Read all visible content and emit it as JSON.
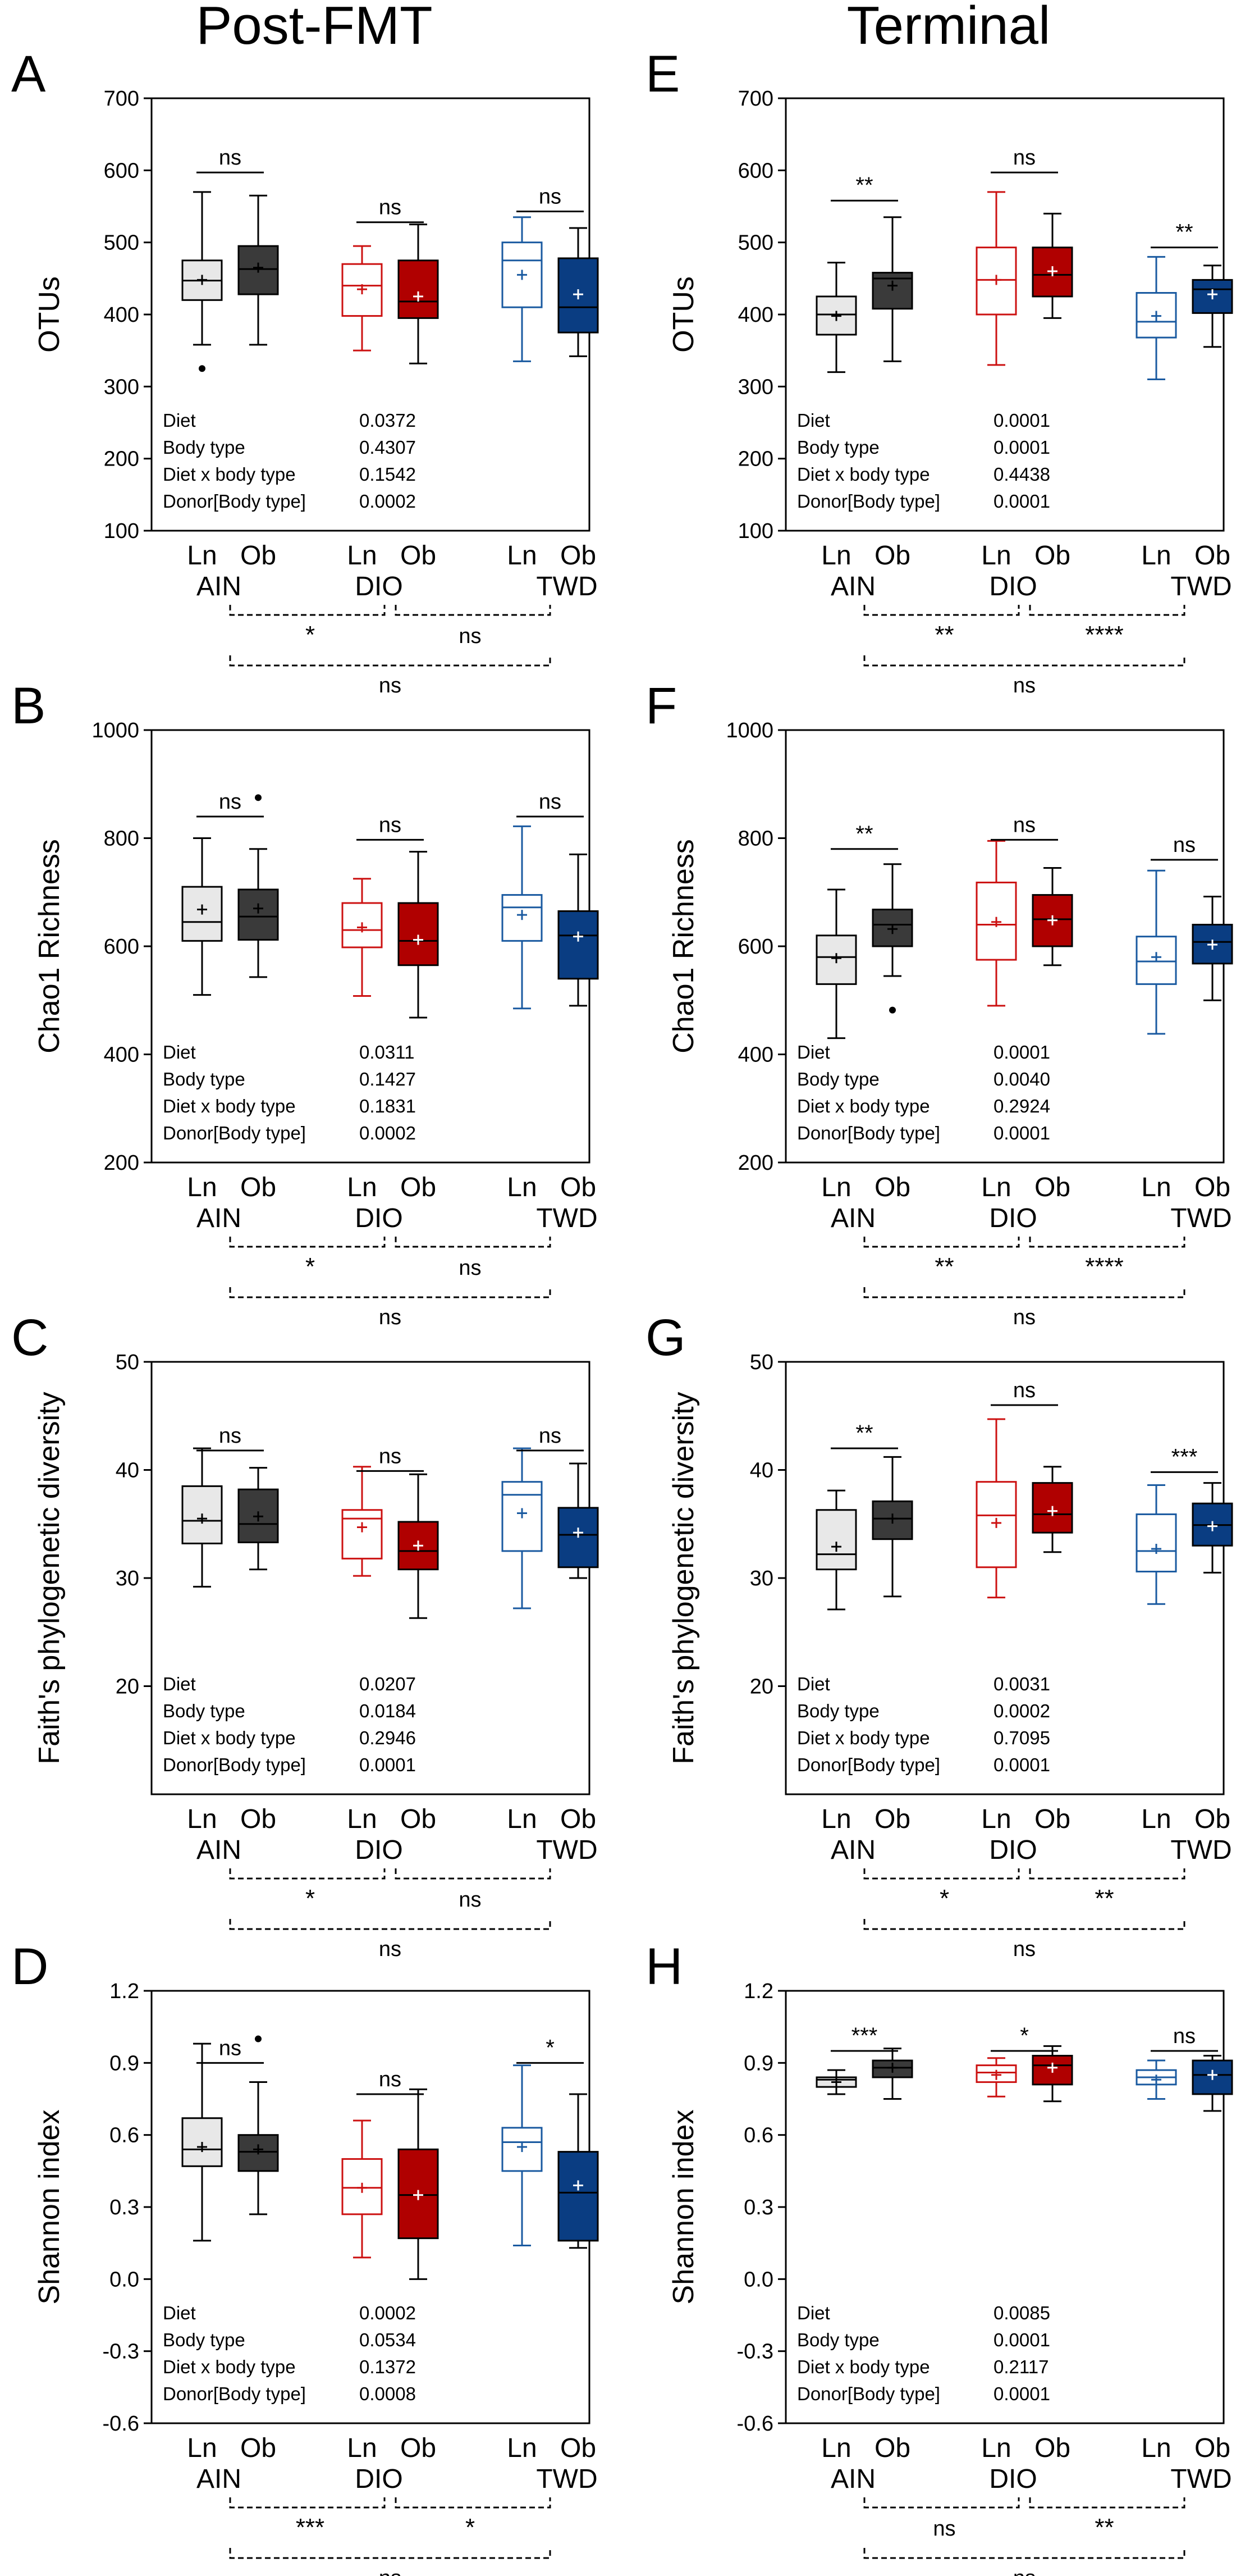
{
  "headers": {
    "left": "Post-FMT",
    "right": "Terminal"
  },
  "colors": {
    "ain_ln_fill": "#e8e8e8",
    "ain_ob_fill": "#3a3a3a",
    "dio_ln_fill": "#ffffff",
    "dio_ob_fill": "#b00000",
    "twd_ln_fill": "#ffffff",
    "twd_ob_fill": "#0a3d82",
    "ain_stroke": "#000000",
    "dio_stroke": "#cc1111",
    "twd_stroke": "#1a5aa0",
    "mean_light": "#000000",
    "mean_dark": "#ffffff"
  },
  "groups": {
    "sub": [
      "Ln",
      "Ob"
    ],
    "diets": [
      "AIN",
      "DIO",
      "TWD"
    ]
  },
  "chart_data": [
    {
      "type": "box",
      "letter": "A",
      "ylabel": "OTUs",
      "ylim": [
        100,
        700
      ],
      "yticks": [
        "100",
        "200",
        "300",
        "400",
        "500",
        "600",
        "700"
      ],
      "boxes": [
        {
          "diet": "AIN",
          "body": "Ln",
          "q1": 420,
          "median": 447,
          "q3": 475,
          "wlo": 358,
          "whi": 570,
          "mean": 448,
          "outliers": [
            325
          ]
        },
        {
          "diet": "AIN",
          "body": "Ob",
          "q1": 428,
          "median": 463,
          "q3": 495,
          "wlo": 358,
          "whi": 565,
          "mean": 465,
          "outliers": []
        },
        {
          "diet": "DIO",
          "body": "Ln",
          "q1": 398,
          "median": 440,
          "q3": 470,
          "wlo": 350,
          "whi": 495,
          "mean": 435,
          "outliers": []
        },
        {
          "diet": "DIO",
          "body": "Ob",
          "q1": 395,
          "median": 418,
          "q3": 475,
          "wlo": 332,
          "whi": 525,
          "mean": 425,
          "outliers": []
        },
        {
          "diet": "TWD",
          "body": "Ln",
          "q1": 410,
          "median": 475,
          "q3": 500,
          "wlo": 335,
          "whi": 535,
          "mean": 455,
          "outliers": []
        },
        {
          "diet": "TWD",
          "body": "Ob",
          "q1": 375,
          "median": 410,
          "q3": 478,
          "wlo": 342,
          "whi": 520,
          "mean": 428,
          "outliers": []
        }
      ],
      "within": [
        {
          "diet": "AIN",
          "label": "ns",
          "y": 597
        },
        {
          "diet": "DIO",
          "label": "ns",
          "y": 528
        },
        {
          "diet": "TWD",
          "label": "ns",
          "y": 543
        }
      ],
      "stats": [
        {
          "name": "Diet",
          "p": "0.0372"
        },
        {
          "name": "Body type",
          "p": "0.4307"
        },
        {
          "name": "Diet x body type",
          "p": "0.1542"
        },
        {
          "name": "Donor[Body type]",
          "p": "0.0002"
        }
      ],
      "between": {
        "ain_dio": "*",
        "dio_twd": "ns",
        "ain_twd": "ns"
      }
    },
    {
      "type": "box",
      "letter": "B",
      "ylabel": "Chao1 Richness",
      "ylim": [
        200,
        1000
      ],
      "yticks": [
        "200",
        "400",
        "600",
        "800",
        "1000"
      ],
      "boxes": [
        {
          "diet": "AIN",
          "body": "Ln",
          "q1": 610,
          "median": 645,
          "q3": 710,
          "wlo": 510,
          "whi": 800,
          "mean": 668,
          "outliers": []
        },
        {
          "diet": "AIN",
          "body": "Ob",
          "q1": 612,
          "median": 655,
          "q3": 705,
          "wlo": 543,
          "whi": 780,
          "mean": 670,
          "outliers": [
            875
          ]
        },
        {
          "diet": "DIO",
          "body": "Ln",
          "q1": 598,
          "median": 630,
          "q3": 680,
          "wlo": 508,
          "whi": 725,
          "mean": 635,
          "outliers": []
        },
        {
          "diet": "DIO",
          "body": "Ob",
          "q1": 565,
          "median": 610,
          "q3": 680,
          "wlo": 468,
          "whi": 775,
          "mean": 612,
          "outliers": []
        },
        {
          "diet": "TWD",
          "body": "Ln",
          "q1": 610,
          "median": 672,
          "q3": 695,
          "wlo": 485,
          "whi": 822,
          "mean": 658,
          "outliers": []
        },
        {
          "diet": "TWD",
          "body": "Ob",
          "q1": 540,
          "median": 620,
          "q3": 665,
          "wlo": 490,
          "whi": 770,
          "mean": 618,
          "outliers": []
        }
      ],
      "within": [
        {
          "diet": "AIN",
          "label": "ns",
          "y": 840
        },
        {
          "diet": "DIO",
          "label": "ns",
          "y": 797
        },
        {
          "diet": "TWD",
          "label": "ns",
          "y": 840
        }
      ],
      "stats": [
        {
          "name": "Diet",
          "p": "0.0311"
        },
        {
          "name": "Body type",
          "p": "0.1427"
        },
        {
          "name": "Diet x body type",
          "p": "0.1831"
        },
        {
          "name": "Donor[Body type]",
          "p": "0.0002"
        }
      ],
      "between": {
        "ain_dio": "*",
        "dio_twd": "ns",
        "ain_twd": "ns"
      }
    },
    {
      "type": "box",
      "letter": "C",
      "ylabel": "Faith's phylogenetic diversity",
      "ylim": [
        10,
        50
      ],
      "yticks": [
        "20",
        "30",
        "40",
        "50"
      ],
      "boxes": [
        {
          "diet": "AIN",
          "body": "Ln",
          "q1": 33.2,
          "median": 35.3,
          "q3": 38.5,
          "wlo": 29.2,
          "whi": 42.0,
          "mean": 35.5,
          "outliers": []
        },
        {
          "diet": "AIN",
          "body": "Ob",
          "q1": 33.3,
          "median": 35.0,
          "q3": 38.2,
          "wlo": 30.8,
          "whi": 40.2,
          "mean": 35.7,
          "outliers": []
        },
        {
          "diet": "DIO",
          "body": "Ln",
          "q1": 31.8,
          "median": 35.5,
          "q3": 36.3,
          "wlo": 30.2,
          "whi": 40.3,
          "mean": 34.7,
          "outliers": []
        },
        {
          "diet": "DIO",
          "body": "Ob",
          "q1": 30.8,
          "median": 32.5,
          "q3": 35.2,
          "wlo": 26.3,
          "whi": 39.6,
          "mean": 33.0,
          "outliers": []
        },
        {
          "diet": "TWD",
          "body": "Ln",
          "q1": 32.5,
          "median": 37.7,
          "q3": 38.9,
          "wlo": 27.2,
          "whi": 42.0,
          "mean": 36.0,
          "outliers": []
        },
        {
          "diet": "TWD",
          "body": "Ob",
          "q1": 31.0,
          "median": 34.0,
          "q3": 36.5,
          "wlo": 30.0,
          "whi": 40.6,
          "mean": 34.2,
          "outliers": []
        }
      ],
      "within": [
        {
          "diet": "AIN",
          "label": "ns",
          "y": 41.8
        },
        {
          "diet": "DIO",
          "label": "ns",
          "y": 39.9
        },
        {
          "diet": "TWD",
          "label": "ns",
          "y": 41.8
        }
      ],
      "stats": [
        {
          "name": "Diet",
          "p": "0.0207"
        },
        {
          "name": "Body type",
          "p": "0.0184"
        },
        {
          "name": "Diet x body type",
          "p": "0.2946"
        },
        {
          "name": "Donor[Body type]",
          "p": "0.0001"
        }
      ],
      "between": {
        "ain_dio": "*",
        "dio_twd": "ns",
        "ain_twd": "ns"
      }
    },
    {
      "type": "box",
      "letter": "D",
      "ylabel": "Shannon index",
      "ylim": [
        -0.6,
        1.2
      ],
      "yticks": [
        "-0.6",
        "-0.3",
        "0.0",
        "0.3",
        "0.6",
        "0.9",
        "1.2"
      ],
      "boxes": [
        {
          "diet": "AIN",
          "body": "Ln",
          "q1": 0.47,
          "median": 0.54,
          "q3": 0.67,
          "wlo": 0.16,
          "whi": 0.98,
          "mean": 0.55,
          "outliers": []
        },
        {
          "diet": "AIN",
          "body": "Ob",
          "q1": 0.45,
          "median": 0.53,
          "q3": 0.6,
          "wlo": 0.27,
          "whi": 0.82,
          "mean": 0.54,
          "outliers": [
            1.0
          ]
        },
        {
          "diet": "DIO",
          "body": "Ln",
          "q1": 0.27,
          "median": 0.38,
          "q3": 0.5,
          "wlo": 0.09,
          "whi": 0.66,
          "mean": 0.38,
          "outliers": []
        },
        {
          "diet": "DIO",
          "body": "Ob",
          "q1": 0.17,
          "median": 0.35,
          "q3": 0.54,
          "wlo": 0.0,
          "whi": 0.79,
          "mean": 0.35,
          "outliers": []
        },
        {
          "diet": "TWD",
          "body": "Ln",
          "q1": 0.45,
          "median": 0.57,
          "q3": 0.63,
          "wlo": 0.14,
          "whi": 0.89,
          "mean": 0.55,
          "outliers": []
        },
        {
          "diet": "TWD",
          "body": "Ob",
          "q1": 0.16,
          "median": 0.36,
          "q3": 0.53,
          "wlo": 0.13,
          "whi": 0.77,
          "mean": 0.39,
          "outliers": []
        }
      ],
      "within": [
        {
          "diet": "AIN",
          "label": "ns",
          "y": 0.9
        },
        {
          "diet": "DIO",
          "label": "ns",
          "y": 0.77
        },
        {
          "diet": "TWD",
          "label": "*",
          "y": 0.9
        }
      ],
      "stats": [
        {
          "name": "Diet",
          "p": "0.0002"
        },
        {
          "name": "Body type",
          "p": "0.0534"
        },
        {
          "name": "Diet x body type",
          "p": "0.1372"
        },
        {
          "name": "Donor[Body type]",
          "p": "0.0008"
        }
      ],
      "between": {
        "ain_dio": "***",
        "dio_twd": "*",
        "ain_twd": "ns"
      }
    },
    {
      "type": "box",
      "letter": "E",
      "ylabel": "OTUs",
      "ylim": [
        100,
        700
      ],
      "yticks": [
        "100",
        "200",
        "300",
        "400",
        "500",
        "600",
        "700"
      ],
      "boxes": [
        {
          "diet": "AIN",
          "body": "Ln",
          "q1": 372,
          "median": 400,
          "q3": 425,
          "wlo": 320,
          "whi": 472,
          "mean": 398,
          "outliers": []
        },
        {
          "diet": "AIN",
          "body": "Ob",
          "q1": 408,
          "median": 450,
          "q3": 458,
          "wlo": 335,
          "whi": 535,
          "mean": 440,
          "outliers": []
        },
        {
          "diet": "DIO",
          "body": "Ln",
          "q1": 400,
          "median": 448,
          "q3": 493,
          "wlo": 330,
          "whi": 570,
          "mean": 448,
          "outliers": []
        },
        {
          "diet": "DIO",
          "body": "Ob",
          "q1": 425,
          "median": 455,
          "q3": 493,
          "wlo": 395,
          "whi": 540,
          "mean": 460,
          "outliers": []
        },
        {
          "diet": "TWD",
          "body": "Ln",
          "q1": 368,
          "median": 390,
          "q3": 430,
          "wlo": 310,
          "whi": 480,
          "mean": 398,
          "outliers": []
        },
        {
          "diet": "TWD",
          "body": "Ob",
          "q1": 402,
          "median": 435,
          "q3": 448,
          "wlo": 355,
          "whi": 468,
          "mean": 428,
          "outliers": []
        }
      ],
      "within": [
        {
          "diet": "AIN",
          "label": "**",
          "y": 558
        },
        {
          "diet": "DIO",
          "label": "ns",
          "y": 597
        },
        {
          "diet": "TWD",
          "label": "**",
          "y": 493
        }
      ],
      "stats": [
        {
          "name": "Diet",
          "p": "0.0001"
        },
        {
          "name": "Body type",
          "p": "0.0001"
        },
        {
          "name": "Diet x body type",
          "p": "0.4438"
        },
        {
          "name": "Donor[Body type]",
          "p": "0.0001"
        }
      ],
      "between": {
        "ain_dio": "**",
        "dio_twd": "****",
        "ain_twd": "ns"
      }
    },
    {
      "type": "box",
      "letter": "F",
      "ylabel": "Chao1 Richness",
      "ylim": [
        200,
        1000
      ],
      "yticks": [
        "200",
        "400",
        "600",
        "800",
        "1000"
      ],
      "boxes": [
        {
          "diet": "AIN",
          "body": "Ln",
          "q1": 530,
          "median": 580,
          "q3": 620,
          "wlo": 430,
          "whi": 705,
          "mean": 578,
          "outliers": []
        },
        {
          "diet": "AIN",
          "body": "Ob",
          "q1": 600,
          "median": 640,
          "q3": 668,
          "wlo": 545,
          "whi": 752,
          "mean": 632,
          "outliers": [
            482
          ]
        },
        {
          "diet": "DIO",
          "body": "Ln",
          "q1": 575,
          "median": 640,
          "q3": 718,
          "wlo": 490,
          "whi": 795,
          "mean": 645,
          "outliers": []
        },
        {
          "diet": "DIO",
          "body": "Ob",
          "q1": 600,
          "median": 650,
          "q3": 695,
          "wlo": 565,
          "whi": 745,
          "mean": 648,
          "outliers": []
        },
        {
          "diet": "TWD",
          "body": "Ln",
          "q1": 530,
          "median": 572,
          "q3": 618,
          "wlo": 438,
          "whi": 740,
          "mean": 580,
          "outliers": []
        },
        {
          "diet": "TWD",
          "body": "Ob",
          "q1": 568,
          "median": 608,
          "q3": 640,
          "wlo": 500,
          "whi": 692,
          "mean": 603,
          "outliers": []
        }
      ],
      "within": [
        {
          "diet": "AIN",
          "label": "**",
          "y": 780
        },
        {
          "diet": "DIO",
          "label": "ns",
          "y": 797
        },
        {
          "diet": "TWD",
          "label": "ns",
          "y": 760
        }
      ],
      "stats": [
        {
          "name": "Diet",
          "p": "0.0001"
        },
        {
          "name": "Body type",
          "p": "0.0040"
        },
        {
          "name": "Diet x body type",
          "p": "0.2924"
        },
        {
          "name": "Donor[Body type]",
          "p": "0.0001"
        }
      ],
      "between": {
        "ain_dio": "**",
        "dio_twd": "****",
        "ain_twd": "ns"
      }
    },
    {
      "type": "box",
      "letter": "G",
      "ylabel": "Faith's phylogenetic diversity",
      "ylim": [
        10,
        50
      ],
      "yticks": [
        "20",
        "30",
        "40",
        "50"
      ],
      "boxes": [
        {
          "diet": "AIN",
          "body": "Ln",
          "q1": 30.8,
          "median": 32.2,
          "q3": 36.3,
          "wlo": 27.1,
          "whi": 38.1,
          "mean": 32.9,
          "outliers": []
        },
        {
          "diet": "AIN",
          "body": "Ob",
          "q1": 33.6,
          "median": 35.5,
          "q3": 37.1,
          "wlo": 28.3,
          "whi": 41.2,
          "mean": 35.5,
          "outliers": []
        },
        {
          "diet": "DIO",
          "body": "Ln",
          "q1": 31.0,
          "median": 35.8,
          "q3": 38.9,
          "wlo": 28.2,
          "whi": 44.7,
          "mean": 35.1,
          "outliers": []
        },
        {
          "diet": "DIO",
          "body": "Ob",
          "q1": 34.2,
          "median": 35.9,
          "q3": 38.8,
          "wlo": 32.4,
          "whi": 40.3,
          "mean": 36.2,
          "outliers": []
        },
        {
          "diet": "TWD",
          "body": "Ln",
          "q1": 30.6,
          "median": 32.5,
          "q3": 35.9,
          "wlo": 27.6,
          "whi": 38.6,
          "mean": 32.7,
          "outliers": []
        },
        {
          "diet": "TWD",
          "body": "Ob",
          "q1": 33.0,
          "median": 34.9,
          "q3": 36.9,
          "wlo": 30.5,
          "whi": 38.8,
          "mean": 34.8,
          "outliers": []
        }
      ],
      "within": [
        {
          "diet": "AIN",
          "label": "**",
          "y": 42.0
        },
        {
          "diet": "DIO",
          "label": "ns",
          "y": 46.0
        },
        {
          "diet": "TWD",
          "label": "***",
          "y": 39.8
        }
      ],
      "stats": [
        {
          "name": "Diet",
          "p": "0.0031"
        },
        {
          "name": "Body type",
          "p": "0.0002"
        },
        {
          "name": "Diet x body type",
          "p": "0.7095"
        },
        {
          "name": "Donor[Body type]",
          "p": "0.0001"
        }
      ],
      "between": {
        "ain_dio": "*",
        "dio_twd": "**",
        "ain_twd": "ns"
      }
    },
    {
      "type": "box",
      "letter": "H",
      "ylabel": "Shannon index",
      "ylim": [
        -0.6,
        1.2
      ],
      "yticks": [
        "-0.6",
        "-0.3",
        "0.0",
        "0.3",
        "0.6",
        "0.9",
        "1.2"
      ],
      "boxes": [
        {
          "diet": "AIN",
          "body": "Ln",
          "q1": 0.8,
          "median": 0.83,
          "q3": 0.84,
          "wlo": 0.77,
          "whi": 0.87,
          "mean": 0.82,
          "outliers": []
        },
        {
          "diet": "AIN",
          "body": "Ob",
          "q1": 0.84,
          "median": 0.88,
          "q3": 0.91,
          "wlo": 0.75,
          "whi": 0.96,
          "mean": 0.88,
          "outliers": []
        },
        {
          "diet": "DIO",
          "body": "Ln",
          "q1": 0.82,
          "median": 0.86,
          "q3": 0.89,
          "wlo": 0.76,
          "whi": 0.92,
          "mean": 0.85,
          "outliers": []
        },
        {
          "diet": "DIO",
          "body": "Ob",
          "q1": 0.81,
          "median": 0.89,
          "q3": 0.93,
          "wlo": 0.74,
          "whi": 0.97,
          "mean": 0.88,
          "outliers": []
        },
        {
          "diet": "TWD",
          "body": "Ln",
          "q1": 0.81,
          "median": 0.84,
          "q3": 0.87,
          "wlo": 0.75,
          "whi": 0.91,
          "mean": 0.83,
          "outliers": []
        },
        {
          "diet": "TWD",
          "body": "Ob",
          "q1": 0.77,
          "median": 0.85,
          "q3": 0.91,
          "wlo": 0.7,
          "whi": 0.93,
          "mean": 0.85,
          "outliers": []
        }
      ],
      "within": [
        {
          "diet": "AIN",
          "label": "***",
          "y": 0.95
        },
        {
          "diet": "DIO",
          "label": "*",
          "y": 0.95
        },
        {
          "diet": "TWD",
          "label": "ns",
          "y": 0.95
        }
      ],
      "stats": [
        {
          "name": "Diet",
          "p": "0.0085"
        },
        {
          "name": "Body type",
          "p": "0.0001"
        },
        {
          "name": "Diet x body type",
          "p": "0.2117"
        },
        {
          "name": "Donor[Body type]",
          "p": "0.0001"
        }
      ],
      "between": {
        "ain_dio": "ns",
        "dio_twd": "**",
        "ain_twd": "ns"
      }
    }
  ]
}
